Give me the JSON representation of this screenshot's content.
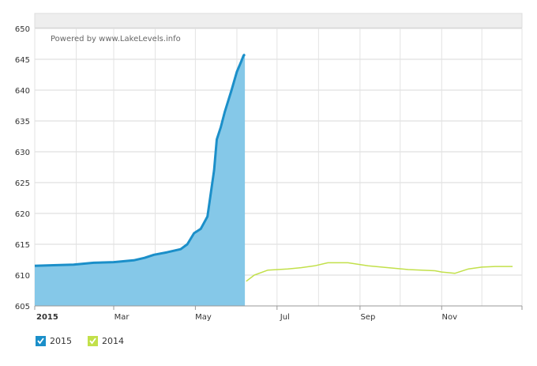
{
  "chart_data": {
    "type": "area",
    "credit": "Powered by www.LakeLevels.info",
    "ylim": [
      605,
      650
    ],
    "y_ticks": [
      "605",
      "610",
      "615",
      "620",
      "625",
      "630",
      "635",
      "640",
      "645",
      "650"
    ],
    "x_tick_labels": [
      "2015",
      "Mar",
      "May",
      "Jul",
      "Sep",
      "Nov"
    ],
    "grid": true,
    "legend": "bottom-left",
    "colors": {
      "2015_line": "#1b8fc9",
      "2015_fill": "#85c8e8",
      "2014_line": "#c2e04a"
    },
    "series": [
      {
        "name": "2015",
        "x": [
          1,
          15,
          30,
          45,
          60,
          75,
          83,
          90,
          100,
          110,
          115,
          120,
          125,
          130,
          135,
          137,
          140,
          143,
          148,
          152,
          155,
          157,
          158
        ],
        "y": [
          611.5,
          611.6,
          611.7,
          612.0,
          612.1,
          612.4,
          612.8,
          613.3,
          613.7,
          614.2,
          615.0,
          616.8,
          617.5,
          619.5,
          627.0,
          632.0,
          634.0,
          636.5,
          640.0,
          643.0,
          644.5,
          645.6,
          645.8
        ]
      },
      {
        "name": "2014",
        "x": [
          159,
          165,
          175,
          190,
          200,
          210,
          220,
          235,
          250,
          265,
          280,
          290,
          300,
          305,
          315,
          325,
          335,
          345,
          358
        ],
        "y": [
          609.0,
          610.0,
          610.8,
          611.0,
          611.2,
          611.5,
          612.0,
          612.0,
          611.5,
          611.2,
          610.9,
          610.8,
          610.7,
          610.5,
          610.3,
          611.0,
          611.3,
          611.4,
          611.4
        ]
      }
    ]
  },
  "legend": {
    "item_2015": "2015",
    "item_2014": "2014"
  }
}
